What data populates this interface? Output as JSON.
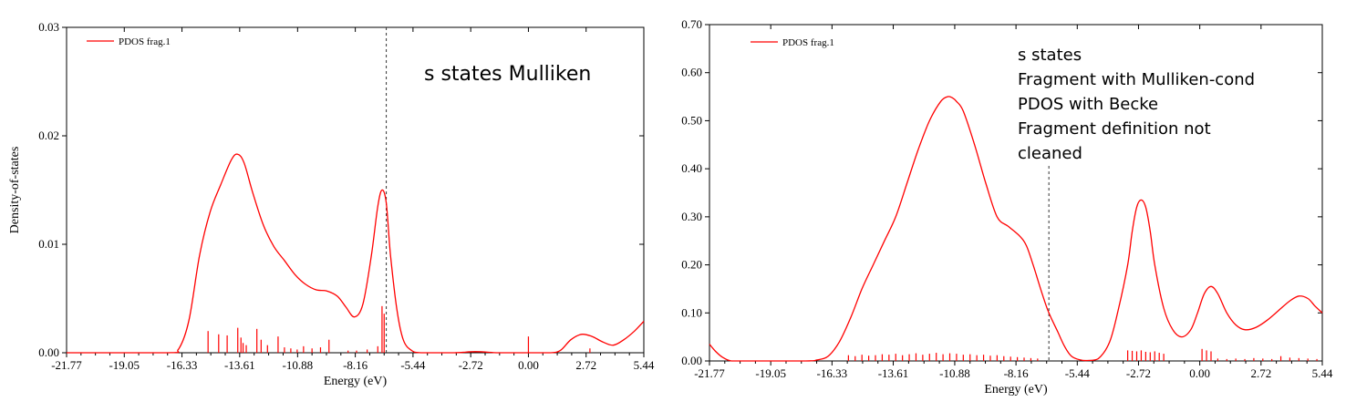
{
  "chart_data": [
    {
      "type": "line",
      "xlabel": "Energy (eV)",
      "ylabel": "Density-of-states",
      "xlim": [
        -21.77,
        5.44
      ],
      "ylim": [
        0,
        0.03
      ],
      "xticks": [
        "-21.77",
        "-19.05",
        "-16.33",
        "-13.61",
        "-10.88",
        "-8.16",
        "-5.44",
        "-2.72",
        "0.00",
        "2.72",
        "5.44"
      ],
      "yticks": [
        "0.00",
        "0.01",
        "0.02",
        "0.03"
      ],
      "legend": {
        "placement": "top-left",
        "entries": [
          "PDOS frag.1"
        ]
      },
      "annotation": [
        "s states Mulliken"
      ],
      "fermi_level": -6.7,
      "series": [
        {
          "name": "PDOS frag.1",
          "color": "#ff0000",
          "x": [
            -21.77,
            -17.0,
            -16.5,
            -16.0,
            -15.5,
            -15.0,
            -14.5,
            -14.0,
            -13.7,
            -13.4,
            -13.0,
            -12.5,
            -12.0,
            -11.5,
            -11.0,
            -10.5,
            -10.0,
            -9.5,
            -9.0,
            -8.6,
            -8.2,
            -7.8,
            -7.4,
            -7.1,
            -6.9,
            -6.7,
            -6.5,
            -6.2,
            -5.9,
            -5.5,
            -5.0,
            -3.5,
            -2.5,
            -1.5,
            -1.0,
            0.0,
            1.0,
            1.5,
            2.0,
            2.5,
            3.0,
            3.5,
            4.0,
            4.5,
            5.0,
            5.44
          ],
          "y": [
            0,
            0,
            0.0003,
            0.003,
            0.009,
            0.013,
            0.0155,
            0.0178,
            0.0183,
            0.0175,
            0.0148,
            0.0118,
            0.0098,
            0.0085,
            0.0072,
            0.0063,
            0.0058,
            0.0057,
            0.0052,
            0.0042,
            0.0033,
            0.0045,
            0.009,
            0.0135,
            0.015,
            0.0138,
            0.009,
            0.004,
            0.0012,
            0.0002,
            0,
            0,
            0.0001,
            0,
            0,
            0,
            0,
            0.0002,
            0.0012,
            0.0017,
            0.0015,
            0.001,
            0.0007,
            0.0012,
            0.002,
            0.0029
          ]
        }
      ],
      "sticks": {
        "x": [
          -15.1,
          -14.6,
          -14.2,
          -13.7,
          -13.55,
          -13.45,
          -13.3,
          -12.8,
          -12.6,
          -12.3,
          -11.8,
          -11.5,
          -11.2,
          -10.9,
          -10.6,
          -10.2,
          -9.8,
          -9.4,
          -8.5,
          -8.1,
          -7.6,
          -7.1,
          -6.9,
          -6.8,
          0.0,
          2.9
        ],
        "y": [
          0.002,
          0.0017,
          0.0016,
          0.0023,
          0.0014,
          0.0009,
          0.0007,
          0.0022,
          0.0012,
          0.0007,
          0.0015,
          0.0005,
          0.0004,
          0.0003,
          0.0006,
          0.0004,
          0.0005,
          0.0012,
          0.0002,
          0.0002,
          0.0003,
          0.0006,
          0.0043,
          0.0036,
          0.0015,
          0.0004
        ]
      }
    },
    {
      "type": "line",
      "xlabel": "Energy (eV)",
      "ylabel": "Density-of-states",
      "xlim": [
        -21.77,
        5.44
      ],
      "ylim": [
        0,
        0.7
      ],
      "xticks": [
        "-21.77",
        "-19.05",
        "-16.33",
        "-13.61",
        "-10.88",
        "-8.16",
        "-5.44",
        "-2.72",
        "0.00",
        "2.72",
        "5.44"
      ],
      "yticks": [
        "0.00",
        "0.10",
        "0.20",
        "0.30",
        "0.40",
        "0.50",
        "0.60",
        "0.70"
      ],
      "legend": {
        "placement": "top-left",
        "entries": [
          "PDOS frag.1"
        ]
      },
      "annotation": [
        "s states",
        "Fragment with Mulliken-cond",
        "PDOS with Becke",
        "Fragment definition not",
        "cleaned"
      ],
      "fermi_level": -6.7,
      "series": [
        {
          "name": "PDOS frag.1",
          "color": "#ff0000",
          "x": [
            -21.77,
            -21.5,
            -21.2,
            -20.8,
            -20.0,
            -17.5,
            -17.0,
            -16.5,
            -16.0,
            -15.5,
            -15.0,
            -14.5,
            -14.0,
            -13.5,
            -13.0,
            -12.5,
            -12.0,
            -11.5,
            -11.2,
            -11.0,
            -10.8,
            -10.5,
            -10.0,
            -9.5,
            -9.0,
            -8.5,
            -8.0,
            -7.7,
            -7.4,
            -7.0,
            -6.7,
            -6.3,
            -6.0,
            -5.7,
            -5.3,
            -5.0,
            -4.5,
            -4.0,
            -3.6,
            -3.2,
            -3.0,
            -2.8,
            -2.6,
            -2.4,
            -2.2,
            -2.0,
            -1.6,
            -1.2,
            -0.8,
            -0.4,
            -0.1,
            0.2,
            0.5,
            0.8,
            1.2,
            1.6,
            2.0,
            2.5,
            3.0,
            3.5,
            4.0,
            4.4,
            4.8,
            5.1,
            5.44
          ],
          "y": [
            0.035,
            0.02,
            0.008,
            0,
            0,
            0,
            0.002,
            0.01,
            0.04,
            0.09,
            0.15,
            0.2,
            0.25,
            0.3,
            0.37,
            0.44,
            0.5,
            0.54,
            0.55,
            0.548,
            0.54,
            0.52,
            0.45,
            0.37,
            0.3,
            0.28,
            0.26,
            0.24,
            0.2,
            0.14,
            0.1,
            0.06,
            0.03,
            0.01,
            0.002,
            0.001,
            0.005,
            0.04,
            0.11,
            0.2,
            0.27,
            0.32,
            0.335,
            0.32,
            0.27,
            0.2,
            0.11,
            0.065,
            0.05,
            0.065,
            0.1,
            0.14,
            0.155,
            0.14,
            0.1,
            0.075,
            0.065,
            0.07,
            0.085,
            0.105,
            0.125,
            0.135,
            0.13,
            0.115,
            0.1
          ]
        }
      ],
      "sticks": {
        "x": [
          -15.6,
          -15.3,
          -15.0,
          -14.7,
          -14.4,
          -14.1,
          -13.8,
          -13.5,
          -13.2,
          -12.9,
          -12.6,
          -12.3,
          -12.0,
          -11.7,
          -11.4,
          -11.1,
          -10.8,
          -10.5,
          -10.2,
          -9.9,
          -9.6,
          -9.3,
          -9.0,
          -8.7,
          -8.4,
          -8.1,
          -7.8,
          -7.5,
          -7.2,
          -3.2,
          -3.0,
          -2.8,
          -2.6,
          -2.4,
          -2.2,
          -2.0,
          -1.8,
          -1.6,
          0.1,
          0.3,
          0.5,
          0.8,
          1.2,
          1.6,
          2.0,
          2.4,
          2.8,
          3.2,
          3.6,
          4.0,
          4.4,
          4.8,
          5.2
        ],
        "y": [
          0.012,
          0.01,
          0.013,
          0.011,
          0.012,
          0.014,
          0.013,
          0.015,
          0.012,
          0.014,
          0.016,
          0.013,
          0.015,
          0.017,
          0.014,
          0.016,
          0.015,
          0.013,
          0.014,
          0.012,
          0.013,
          0.011,
          0.012,
          0.01,
          0.009,
          0.008,
          0.007,
          0.006,
          0.005,
          0.022,
          0.021,
          0.02,
          0.022,
          0.019,
          0.018,
          0.02,
          0.017,
          0.015,
          0.025,
          0.022,
          0.02,
          0.005,
          0.004,
          0.005,
          0.004,
          0.006,
          0.005,
          0.004,
          0.01,
          0.007,
          0.006,
          0.005,
          0.004
        ]
      }
    }
  ]
}
